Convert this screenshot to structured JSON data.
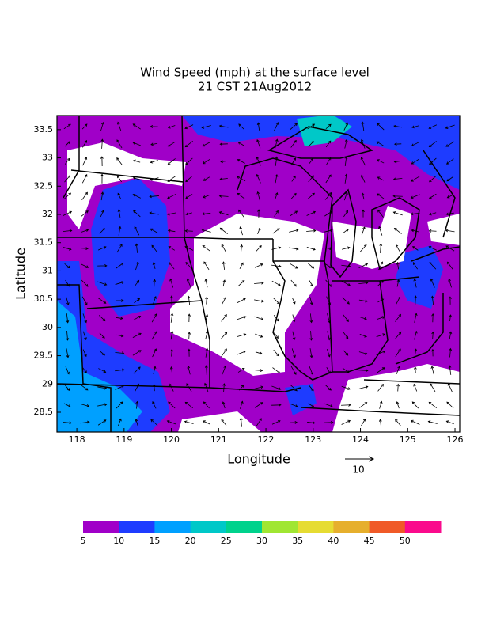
{
  "title": [
    "Wind Speed (mph) at the surface level",
    "21 CST 21Aug2012"
  ],
  "x_axis": {
    "label": "Longitude",
    "xlim": [
      117.58,
      126.1
    ],
    "ticks": [
      118,
      119,
      120,
      121,
      122,
      123,
      124,
      125,
      126
    ]
  },
  "y_axis": {
    "label": "Latitude",
    "ylim": [
      28.15,
      33.75
    ],
    "ticks": [
      28.5,
      29,
      29.5,
      30,
      30.5,
      31,
      31.5,
      32,
      32.5,
      33,
      33.5
    ]
  },
  "vector_reference": {
    "label": "10"
  },
  "colorbar": {
    "colors": [
      "#a000c8",
      "#1e3cff",
      "#00a0ff",
      "#00c8c8",
      "#00d28c",
      "#a0e632",
      "#e6dc32",
      "#e6af2d",
      "#f05a28",
      "#fa0a8c"
    ],
    "labels": [
      5,
      10,
      15,
      20,
      25,
      30,
      35,
      40,
      45,
      50
    ]
  }
}
